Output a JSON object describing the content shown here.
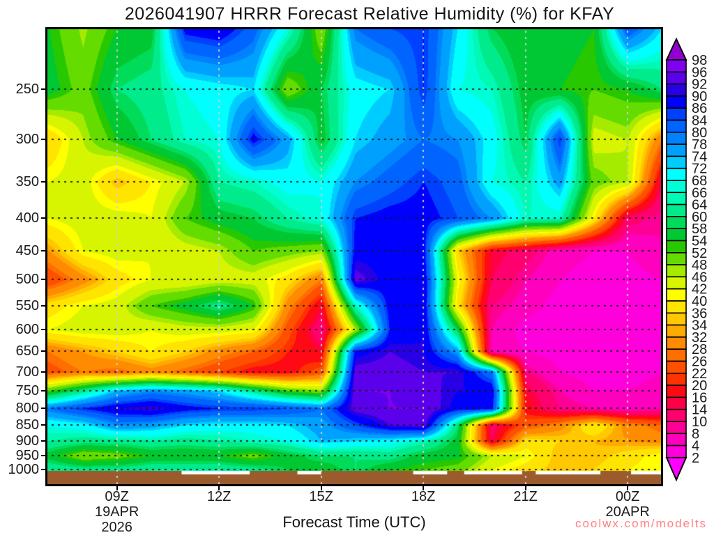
{
  "title": "2026041907 HRRR Forecast Relative Humidity (%) for KFAY",
  "watermark": "coolwx.com/modelts",
  "x_axis": {
    "label": "Forecast Time (UTC)",
    "tick_hours": [
      9,
      12,
      15,
      18,
      21,
      24
    ],
    "tick_labels": [
      "09Z",
      "12Z",
      "15Z",
      "18Z",
      "21Z",
      "00Z"
    ],
    "start_date_lines": [
      "19APR",
      "2026"
    ],
    "end_date_line": "20APR"
  },
  "y_axis": {
    "tick_labels": [
      250,
      300,
      350,
      400,
      450,
      500,
      550,
      600,
      650,
      700,
      750,
      800,
      850,
      900,
      950,
      1000
    ]
  },
  "colorbar": {
    "labels": [
      98,
      96,
      92,
      90,
      86,
      84,
      80,
      78,
      74,
      72,
      68,
      66,
      64,
      60,
      58,
      54,
      52,
      48,
      46,
      42,
      40,
      36,
      34,
      32,
      28,
      26,
      22,
      20,
      16,
      14,
      10,
      8,
      4,
      2
    ]
  },
  "chart_data": {
    "type": "heatmap",
    "title": "2026041907 HRRR Forecast Relative Humidity (%) for KFAY",
    "xlabel": "Forecast Time (UTC)",
    "x_hours": [
      7,
      8,
      9,
      10,
      11,
      12,
      13,
      14,
      15,
      16,
      17,
      18,
      19,
      20,
      21,
      22,
      23,
      24,
      25
    ],
    "pressure_levels_hpa": [
      200,
      250,
      300,
      350,
      400,
      450,
      500,
      550,
      600,
      650,
      700,
      750,
      800,
      850,
      900,
      950,
      1000
    ],
    "y_scale": "log-pressure, 250 top to 1000 bottom",
    "rh_percent_grid": [
      [
        54,
        47,
        54,
        56,
        88,
        90,
        82,
        68,
        48,
        80,
        84,
        86,
        72,
        58,
        54,
        56,
        54,
        84,
        72
      ],
      [
        56,
        50,
        60,
        62,
        68,
        70,
        72,
        48,
        58,
        70,
        72,
        86,
        68,
        66,
        56,
        54,
        52,
        54,
        60
      ],
      [
        36,
        46,
        54,
        60,
        66,
        68,
        88,
        76,
        56,
        72,
        76,
        80,
        78,
        70,
        58,
        86,
        44,
        46,
        28
      ],
      [
        42,
        44,
        34,
        40,
        46,
        64,
        66,
        70,
        68,
        78,
        82,
        86,
        82,
        68,
        64,
        76,
        50,
        46,
        14
      ],
      [
        42,
        44,
        44,
        42,
        52,
        56,
        58,
        64,
        68,
        86,
        88,
        88,
        84,
        78,
        66,
        66,
        40,
        12,
        8
      ],
      [
        32,
        42,
        44,
        42,
        44,
        46,
        52,
        50,
        48,
        88,
        88,
        88,
        36,
        16,
        12,
        6,
        4,
        4,
        8
      ],
      [
        22,
        30,
        38,
        42,
        42,
        44,
        44,
        38,
        28,
        94,
        88,
        90,
        42,
        14,
        8,
        4,
        2,
        2,
        4
      ],
      [
        38,
        42,
        44,
        52,
        56,
        62,
        54,
        30,
        16,
        66,
        88,
        90,
        38,
        10,
        6,
        2,
        2,
        2,
        4
      ],
      [
        42,
        44,
        44,
        42,
        44,
        44,
        42,
        24,
        10,
        46,
        86,
        90,
        58,
        8,
        2,
        2,
        2,
        2,
        4
      ],
      [
        28,
        32,
        36,
        40,
        36,
        30,
        26,
        20,
        16,
        88,
        92,
        90,
        76,
        6,
        4,
        2,
        2,
        2,
        4
      ],
      [
        24,
        28,
        26,
        30,
        26,
        22,
        18,
        18,
        24,
        94,
        94,
        92,
        92,
        80,
        10,
        4,
        2,
        2,
        4
      ],
      [
        52,
        62,
        74,
        78,
        76,
        72,
        62,
        52,
        48,
        96,
        96,
        94,
        90,
        90,
        16,
        8,
        4,
        4,
        6
      ],
      [
        80,
        86,
        90,
        92,
        88,
        86,
        86,
        84,
        80,
        94,
        96,
        96,
        88,
        88,
        18,
        10,
        8,
        6,
        8
      ],
      [
        68,
        70,
        78,
        76,
        72,
        70,
        70,
        72,
        76,
        84,
        92,
        94,
        60,
        12,
        24,
        30,
        40,
        30,
        26
      ],
      [
        64,
        62,
        62,
        64,
        62,
        64,
        66,
        68,
        74,
        72,
        70,
        66,
        56,
        14,
        38,
        36,
        34,
        32,
        30
      ],
      [
        56,
        48,
        50,
        54,
        54,
        54,
        50,
        56,
        60,
        60,
        62,
        56,
        55,
        46,
        42,
        34,
        34,
        38,
        42
      ],
      [
        64,
        62,
        62,
        64,
        64,
        64,
        62,
        58,
        55,
        60,
        54,
        52,
        50,
        42,
        38,
        34,
        36,
        40,
        42
      ]
    ],
    "thresholds": [
      2,
      4,
      8,
      10,
      14,
      16,
      20,
      22,
      26,
      28,
      32,
      34,
      36,
      40,
      42,
      46,
      48,
      52,
      54,
      58,
      60,
      64,
      66,
      68,
      72,
      74,
      78,
      80,
      84,
      86,
      90,
      92,
      96,
      98
    ],
    "band_colors_low_to_high": [
      "#FF00FF",
      "#FF00DC",
      "#FF00BE",
      "#FF0096",
      "#FF006E",
      "#FF0046",
      "#FF0A14",
      "#FF3200",
      "#FF5000",
      "#FF6E00",
      "#FF8C00",
      "#FFAA00",
      "#FFC800",
      "#FFE400",
      "#FFFF00",
      "#D7F500",
      "#A5EB00",
      "#64DC00",
      "#28C800",
      "#00C832",
      "#00DC5A",
      "#00EB8C",
      "#00FAB4",
      "#00FFD7",
      "#00FFFF",
      "#00CDFF",
      "#00A0FF",
      "#0082FF",
      "#0064FF",
      "#0041FF",
      "#0000FF",
      "#2800E6",
      "#5A00EB",
      "#8200F0",
      "#9400D3"
    ],
    "ground_color": "#9B5B2D",
    "surface_line_gaps_hours": [
      [
        10.9,
        12.9
      ],
      [
        14.3,
        15.0
      ],
      [
        17.7,
        18.7
      ],
      [
        19.2,
        20.9
      ],
      [
        21.3,
        23.2
      ],
      [
        24.1,
        25.0
      ]
    ],
    "gridlines": {
      "horizontal_dotted_at_hpa": [
        250,
        300,
        350,
        400,
        450,
        500,
        550,
        600,
        650,
        700,
        750,
        800,
        850,
        900,
        950,
        1000
      ],
      "vertical_dotted_at_hours": [
        9,
        12,
        15,
        18,
        21,
        24
      ]
    },
    "legend_position": "right colorbar with arrow caps"
  }
}
